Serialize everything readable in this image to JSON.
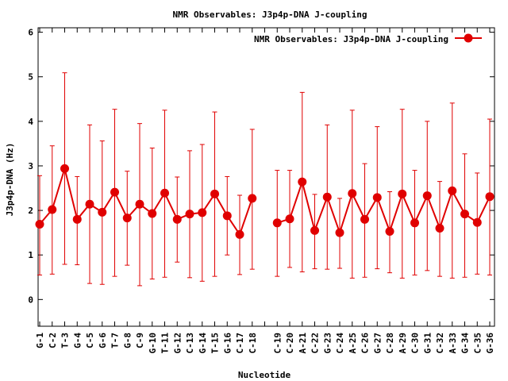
{
  "chart_data": {
    "type": "line",
    "title": "NMR Observables: J3p4p-DNA J-coupling",
    "xlabel": "Nucleotide",
    "ylabel": "J3p4p-DNA (Hz)",
    "ylim": [
      -0.6,
      6.1
    ],
    "yticks": [
      "0",
      "1",
      "2",
      "3",
      "4",
      "5",
      "6"
    ],
    "grid": false,
    "legend_position": "top-right",
    "series_color": "#e00000",
    "categories": [
      "G-1",
      "C-2",
      "T-3",
      "G-4",
      "C-5",
      "G-6",
      "T-7",
      "G-8",
      "C-9",
      "G-10",
      "T-11",
      "G-12",
      "C-13",
      "G-14",
      "T-15",
      "G-16",
      "C-17",
      "C-18",
      "",
      "C-19",
      "C-20",
      "A-21",
      "C-22",
      "G-23",
      "C-24",
      "A-25",
      "C-26",
      "G-27",
      "C-28",
      "A-29",
      "C-30",
      "G-31",
      "C-32",
      "A-33",
      "G-34",
      "C-35",
      "G-36"
    ],
    "series": [
      {
        "name": "NMR Observables: J3p4p-DNA J-coupling",
        "values": [
          1.69,
          2.02,
          2.94,
          1.8,
          2.14,
          1.96,
          2.41,
          1.83,
          2.14,
          1.93,
          2.39,
          1.8,
          1.92,
          1.95,
          2.37,
          1.88,
          1.46,
          2.27,
          null,
          1.72,
          1.81,
          2.64,
          1.55,
          2.3,
          1.5,
          2.38,
          1.8,
          2.29,
          1.53,
          2.37,
          1.72,
          2.33,
          1.6,
          2.44,
          1.92,
          1.73,
          2.31
        ],
        "error_low": [
          0.55,
          0.57,
          0.79,
          0.78,
          0.36,
          0.34,
          0.52,
          0.77,
          0.31,
          0.46,
          0.5,
          0.84,
          0.49,
          0.41,
          0.52,
          1.0,
          0.56,
          0.68,
          null,
          0.52,
          0.72,
          0.62,
          0.69,
          0.68,
          0.7,
          0.48,
          0.5,
          0.69,
          0.6,
          0.48,
          0.55,
          0.65,
          0.52,
          0.48,
          0.5,
          0.57,
          0.55
        ],
        "error_high": [
          2.78,
          3.45,
          5.09,
          2.76,
          3.92,
          3.56,
          4.27,
          2.88,
          3.95,
          3.4,
          4.25,
          2.75,
          3.34,
          3.48,
          4.21,
          2.76,
          2.34,
          3.82,
          null,
          2.9,
          2.9,
          4.65,
          2.36,
          3.92,
          2.27,
          4.25,
          3.05,
          3.88,
          2.42,
          4.27,
          2.9,
          4.0,
          2.65,
          4.41,
          3.27,
          2.84,
          4.05
        ]
      }
    ]
  }
}
